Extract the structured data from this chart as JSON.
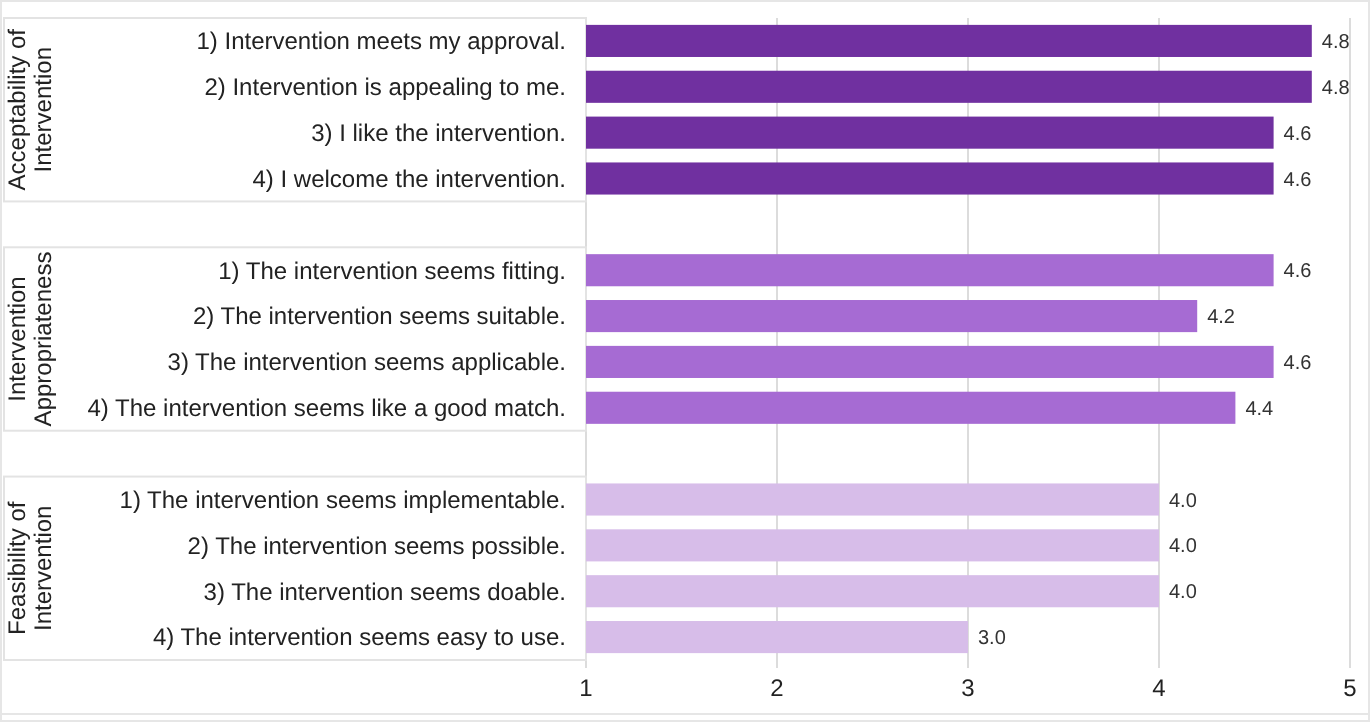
{
  "chart_data": {
    "type": "bar",
    "orientation": "horizontal",
    "categories": [
      "1) Intervention meets my approval.",
      "2) Intervention is appealing to me.",
      "3) I like the intervention.",
      "4) I welcome the intervention.",
      null,
      "1) The intervention seems fitting.",
      "2) The intervention seems suitable.",
      "3) The intervention seems applicable.",
      "4) The intervention seems like a good match.",
      null,
      "1) The intervention seems implementable.",
      "2) The intervention seems possible.",
      "3) The intervention seems doable.",
      "4) The intervention seems easy to use."
    ],
    "values": [
      4.8,
      4.8,
      4.6,
      4.6,
      null,
      4.6,
      4.2,
      4.6,
      4.4,
      null,
      4.0,
      4.0,
      4.0,
      3.0
    ],
    "value_labels": [
      "4.8",
      "4.8",
      "4.6",
      "4.6",
      null,
      "4.6",
      "4.2",
      "4.6",
      "4.4",
      null,
      "4.0",
      "4.0",
      "4.0",
      "3.0"
    ],
    "colors": [
      "#7030a0",
      "#7030a0",
      "#7030a0",
      "#7030a0",
      null,
      "#a66bd3",
      "#a66bd3",
      "#a66bd3",
      "#a66bd3",
      null,
      "#d7bde9",
      "#d7bde9",
      "#d7bde9",
      "#d7bde9"
    ],
    "xlim": [
      1,
      5
    ],
    "xticks": [
      1,
      2,
      3,
      4,
      5
    ],
    "grid": "x",
    "annotations": [
      "Acceptability of Intervention",
      "Intervention Appropriateness",
      "Feasibility of Intervention"
    ]
  }
}
